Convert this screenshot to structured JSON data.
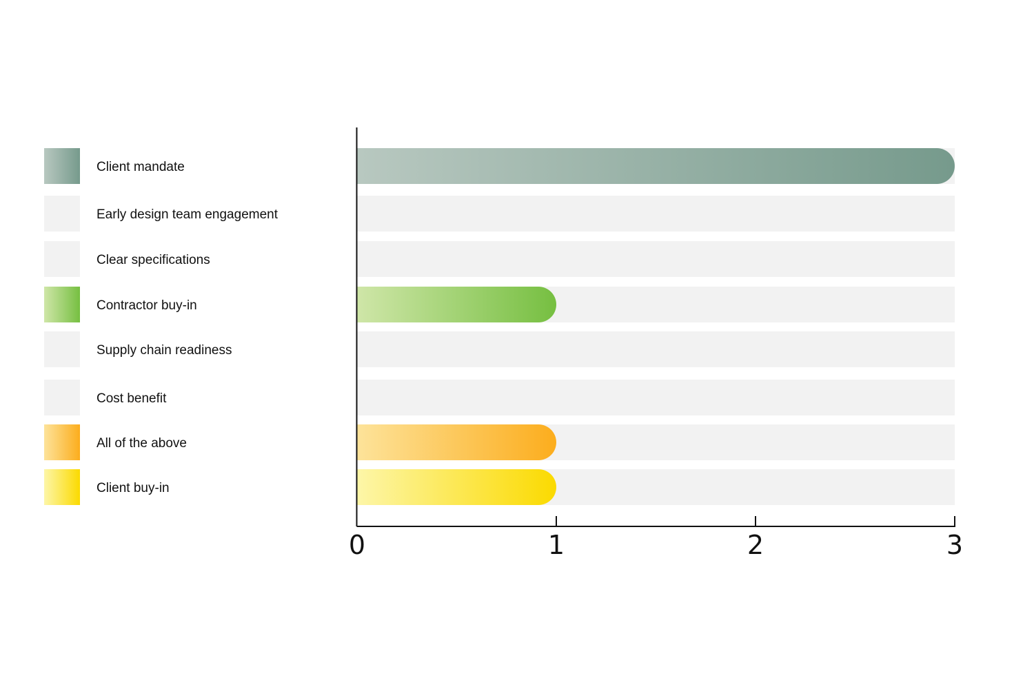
{
  "chart_data": {
    "type": "bar",
    "orientation": "horizontal",
    "categories": [
      "Client mandate",
      "Early design team engagement",
      "Clear specifications",
      "Contractor buy-in",
      "Supply chain readiness",
      "Cost benefit",
      "All of the above",
      "Client buy-in"
    ],
    "values": [
      3,
      0,
      0,
      1,
      0,
      0,
      1,
      1
    ],
    "colors": [
      {
        "start": "#b8c8c0",
        "end": "#769a8c"
      },
      {
        "start": "#f2f2f2",
        "end": "#f2f2f2"
      },
      {
        "start": "#f2f2f2",
        "end": "#f2f2f2"
      },
      {
        "start": "#cfe6a8",
        "end": "#76bf41"
      },
      {
        "start": "#f2f2f2",
        "end": "#f2f2f2"
      },
      {
        "start": "#f2f2f2",
        "end": "#f2f2f2"
      },
      {
        "start": "#fde39a",
        "end": "#fcad1d"
      },
      {
        "start": "#fdf6a8",
        "end": "#fbda00"
      }
    ],
    "track_color": "#f2f2f2",
    "axis_color": "#111111",
    "xlim": [
      0,
      3
    ],
    "xticks": [
      0,
      1,
      2,
      3
    ],
    "xtick_labels": [
      "0",
      "1",
      "2",
      "3"
    ],
    "legend_position": "left",
    "grid": false,
    "title": "",
    "xlabel": "",
    "ylabel": ""
  }
}
